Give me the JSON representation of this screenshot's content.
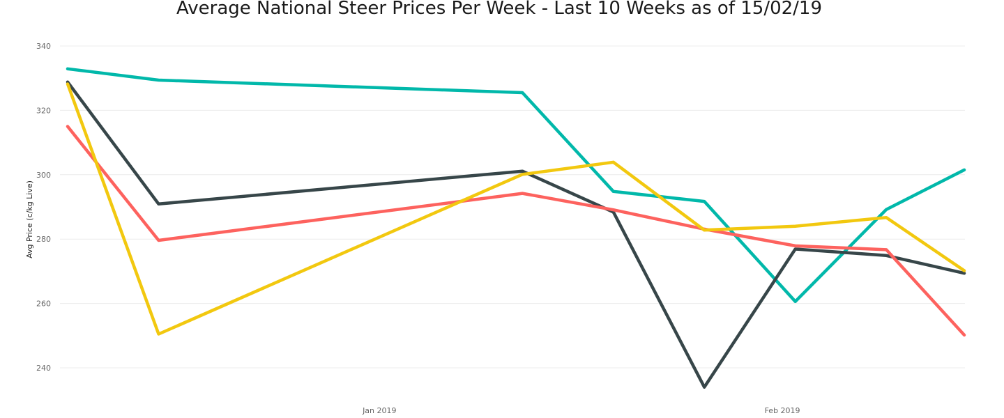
{
  "chart_data": {
    "type": "line",
    "title": "Average National Steer Prices Per Week - Last 10 Weeks as of 15/02/19",
    "xlabel": "",
    "ylabel": "Avg Price (c/kg Live)",
    "ylim": [
      228,
      342
    ],
    "yticks": [
      240,
      260,
      280,
      300,
      320,
      340
    ],
    "x_ticks": [
      {
        "label": "Jan 2019",
        "date": "2019-01-01"
      },
      {
        "label": "Feb 2019",
        "date": "2019-02-01"
      }
    ],
    "x": [
      "2018-12-08",
      "2018-12-15",
      "2019-01-12",
      "2019-01-19",
      "2019-01-26",
      "2019-02-02",
      "2019-02-09",
      "2019-02-15"
    ],
    "grid": true,
    "legend": "none",
    "series": [
      {
        "color": "#01B8AA",
        "values": [
          332.9,
          329.4,
          325.5,
          294.8,
          291.7,
          260.6,
          289.2,
          301.5
        ]
      },
      {
        "color": "#374649",
        "values": [
          328.8,
          290.9,
          301.1,
          288.4,
          234.0,
          276.9,
          274.9,
          269.4
        ]
      },
      {
        "color": "#FD625E",
        "values": [
          315.0,
          279.6,
          294.2,
          289.1,
          283.1,
          277.9,
          276.7,
          250.2
        ]
      },
      {
        "color": "#F2C80F",
        "values": [
          328.2,
          250.5,
          300.1,
          303.9,
          282.8,
          284.0,
          286.7,
          270.2
        ]
      }
    ]
  }
}
